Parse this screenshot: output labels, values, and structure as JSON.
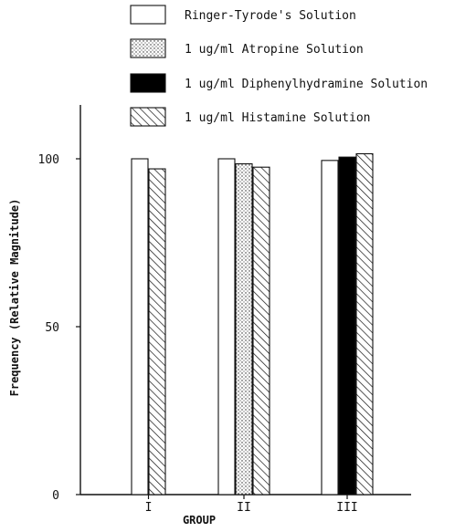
{
  "chart_data": {
    "type": "bar",
    "title": "",
    "xlabel": "GROUP",
    "ylabel": "Frequency (Relative Magnitude)",
    "ylim": [
      0,
      120
    ],
    "yticks": [
      {
        "value": 0,
        "label": "0"
      },
      {
        "value": 50,
        "label": "50"
      },
      {
        "value": 100,
        "label": "100"
      }
    ],
    "categories": [
      "I",
      "II",
      "III"
    ],
    "series": [
      {
        "name": "Ringer-Tyrode's Solution",
        "fill": "plain",
        "values": [
          100,
          100,
          99.5
        ]
      },
      {
        "name": "1 ug/ml Atropine Solution",
        "fill": "dots",
        "values": [
          null,
          98.5,
          null
        ]
      },
      {
        "name": "1 ug/ml Diphenylhydramine Solution",
        "fill": "solid",
        "values": [
          null,
          null,
          100.5
        ]
      },
      {
        "name": "1 ug/ml Histamine Solution",
        "fill": "hatch",
        "values": [
          97,
          97.5,
          101.5
        ]
      }
    ],
    "legend_position": "top",
    "grid": false
  }
}
